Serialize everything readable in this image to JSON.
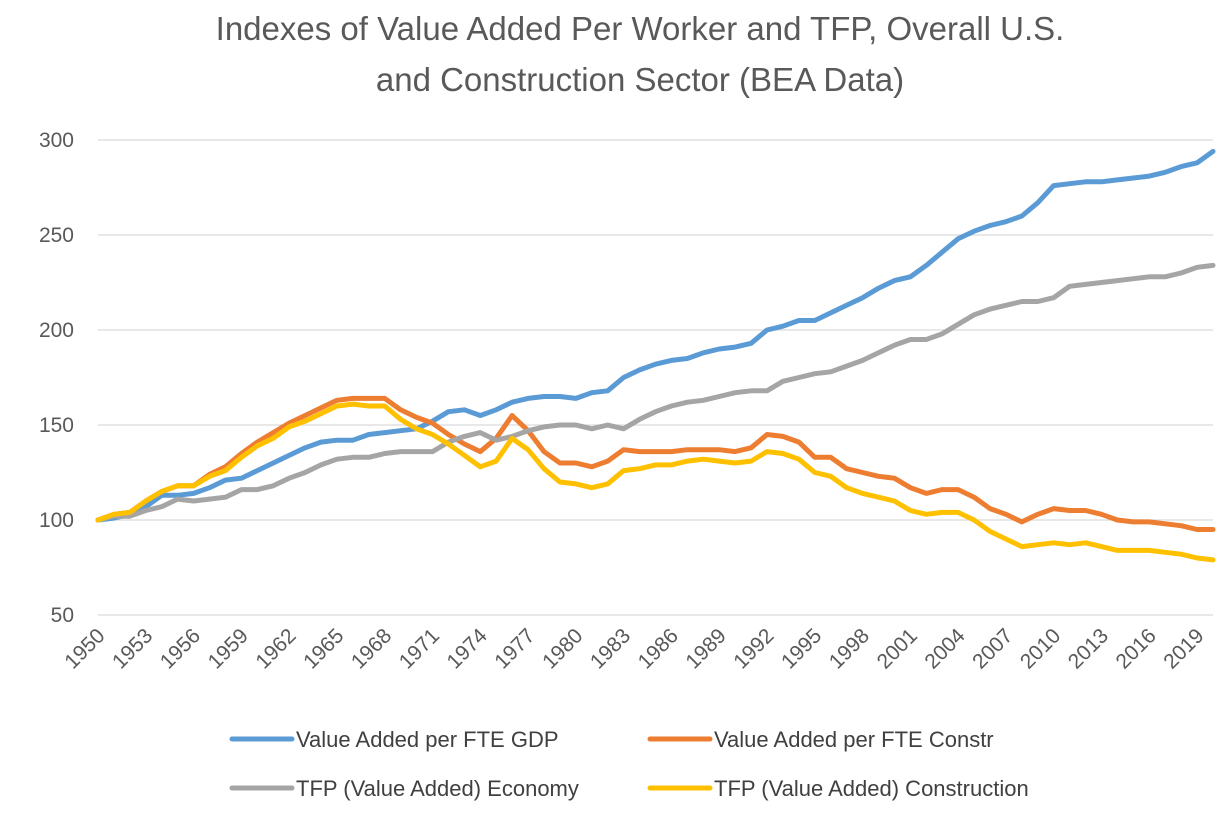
{
  "chart_data": {
    "type": "line",
    "title_lines": [
      "Indexes of Value Added Per Worker and TFP, Overall U.S.",
      "and Construction Sector (BEA Data)"
    ],
    "xlabel": "",
    "ylabel": "",
    "ylim": [
      50,
      300
    ],
    "y_ticks": [
      300,
      250,
      200,
      150,
      100,
      50
    ],
    "x_range": [
      1950,
      2020
    ],
    "x_tick_labels": [
      "1950",
      "1953",
      "1956",
      "1959",
      "1962",
      "1965",
      "1968",
      "1971",
      "1974",
      "1977",
      "1980",
      "1983",
      "1986",
      "1989",
      "1992",
      "1995",
      "1998",
      "2001",
      "2004",
      "2007",
      "2010",
      "2013",
      "2016",
      "2019"
    ],
    "grid": "horizontal",
    "legend_position": "bottom",
    "series": [
      {
        "name": "Value Added per FTE GDP",
        "color": "#5B9BD5",
        "x": [
          1950,
          1951,
          1952,
          1953,
          1954,
          1955,
          1956,
          1957,
          1958,
          1959,
          1960,
          1961,
          1962,
          1963,
          1964,
          1965,
          1966,
          1967,
          1968,
          1969,
          1970,
          1971,
          1972,
          1973,
          1974,
          1975,
          1976,
          1977,
          1978,
          1979,
          1980,
          1981,
          1982,
          1983,
          1984,
          1985,
          1986,
          1987,
          1988,
          1989,
          1990,
          1991,
          1992,
          1993,
          1994,
          1995,
          1996,
          1997,
          1998,
          1999,
          2000,
          2001,
          2002,
          2003,
          2004,
          2005,
          2006,
          2007,
          2008,
          2009,
          2010,
          2011,
          2012,
          2013,
          2014,
          2015,
          2016,
          2017,
          2018,
          2019,
          2020
        ],
        "values": [
          100,
          101,
          103,
          107,
          113,
          113,
          114,
          117,
          121,
          122,
          126,
          130,
          134,
          138,
          141,
          142,
          142,
          145,
          146,
          147,
          148,
          152,
          157,
          158,
          155,
          158,
          162,
          164,
          165,
          165,
          164,
          167,
          168,
          175,
          179,
          182,
          184,
          185,
          188,
          190,
          191,
          193,
          200,
          202,
          205,
          205,
          209,
          213,
          217,
          222,
          226,
          228,
          234,
          241,
          248,
          252,
          255,
          257,
          260,
          267,
          276,
          277,
          278,
          278,
          279,
          280,
          281,
          283,
          286,
          288,
          294
        ]
      },
      {
        "name": "Value Added per FTE Constr",
        "color": "#ED7D31",
        "x": [
          1950,
          1951,
          1952,
          1953,
          1954,
          1955,
          1956,
          1957,
          1958,
          1959,
          1960,
          1961,
          1962,
          1963,
          1964,
          1965,
          1966,
          1967,
          1968,
          1969,
          1970,
          1971,
          1972,
          1973,
          1974,
          1975,
          1976,
          1977,
          1978,
          1979,
          1980,
          1981,
          1982,
          1983,
          1984,
          1985,
          1986,
          1987,
          1988,
          1989,
          1990,
          1991,
          1992,
          1993,
          1994,
          1995,
          1996,
          1997,
          1998,
          1999,
          2000,
          2001,
          2002,
          2003,
          2004,
          2005,
          2006,
          2007,
          2008,
          2009,
          2010,
          2011,
          2012,
          2013,
          2014,
          2015,
          2016,
          2017,
          2018,
          2019,
          2020
        ],
        "values": [
          100,
          103,
          104,
          110,
          115,
          118,
          118,
          124,
          128,
          135,
          141,
          146,
          151,
          155,
          159,
          163,
          164,
          164,
          164,
          158,
          154,
          151,
          145,
          140,
          136,
          143,
          155,
          147,
          136,
          130,
          130,
          128,
          131,
          137,
          136,
          136,
          136,
          137,
          137,
          137,
          136,
          138,
          145,
          144,
          141,
          133,
          133,
          127,
          125,
          123,
          122,
          117,
          114,
          116,
          116,
          112,
          106,
          103,
          99,
          103,
          106,
          105,
          105,
          103,
          100,
          99,
          99,
          98,
          97,
          95,
          95
        ]
      },
      {
        "name": "TFP (Value Added) Economy",
        "color": "#A5A5A5",
        "x": [
          1950,
          1951,
          1952,
          1953,
          1954,
          1955,
          1956,
          1957,
          1958,
          1959,
          1960,
          1961,
          1962,
          1963,
          1964,
          1965,
          1966,
          1967,
          1968,
          1969,
          1970,
          1971,
          1972,
          1973,
          1974,
          1975,
          1976,
          1977,
          1978,
          1979,
          1980,
          1981,
          1982,
          1983,
          1984,
          1985,
          1986,
          1987,
          1988,
          1989,
          1990,
          1991,
          1992,
          1993,
          1994,
          1995,
          1996,
          1997,
          1998,
          1999,
          2000,
          2001,
          2002,
          2003,
          2004,
          2005,
          2006,
          2007,
          2008,
          2009,
          2010,
          2011,
          2012,
          2013,
          2014,
          2015,
          2016,
          2017,
          2018,
          2019,
          2020
        ],
        "values": [
          100,
          102,
          102,
          105,
          107,
          111,
          110,
          111,
          112,
          116,
          116,
          118,
          122,
          125,
          129,
          132,
          133,
          133,
          135,
          136,
          136,
          136,
          141,
          144,
          146,
          142,
          144,
          147,
          149,
          150,
          150,
          148,
          150,
          148,
          153,
          157,
          160,
          162,
          163,
          165,
          167,
          168,
          168,
          173,
          175,
          177,
          178,
          181,
          184,
          188,
          192,
          195,
          195,
          198,
          203,
          208,
          211,
          213,
          215,
          215,
          217,
          223,
          224,
          225,
          226,
          227,
          228,
          228,
          230,
          233,
          234
        ]
      },
      {
        "name": "TFP (Value Added) Construction",
        "color": "#FFC000",
        "x": [
          1950,
          1951,
          1952,
          1953,
          1954,
          1955,
          1956,
          1957,
          1958,
          1959,
          1960,
          1961,
          1962,
          1963,
          1964,
          1965,
          1966,
          1967,
          1968,
          1969,
          1970,
          1971,
          1972,
          1973,
          1974,
          1975,
          1976,
          1977,
          1978,
          1979,
          1980,
          1981,
          1982,
          1983,
          1984,
          1985,
          1986,
          1987,
          1988,
          1989,
          1990,
          1991,
          1992,
          1993,
          1994,
          1995,
          1996,
          1997,
          1998,
          1999,
          2000,
          2001,
          2002,
          2003,
          2004,
          2005,
          2006,
          2007,
          2008,
          2009,
          2010,
          2011,
          2012,
          2013,
          2014,
          2015,
          2016,
          2017,
          2018,
          2019,
          2020
        ],
        "values": [
          100,
          103,
          104,
          110,
          115,
          118,
          118,
          123,
          126,
          133,
          139,
          143,
          149,
          152,
          156,
          160,
          161,
          160,
          160,
          153,
          148,
          145,
          140,
          134,
          128,
          131,
          143,
          137,
          127,
          120,
          119,
          117,
          119,
          126,
          127,
          129,
          129,
          131,
          132,
          131,
          130,
          131,
          136,
          135,
          132,
          125,
          123,
          117,
          114,
          112,
          110,
          105,
          103,
          104,
          104,
          100,
          94,
          90,
          86,
          87,
          88,
          87,
          88,
          86,
          84,
          84,
          84,
          83,
          82,
          80,
          79
        ]
      }
    ]
  }
}
